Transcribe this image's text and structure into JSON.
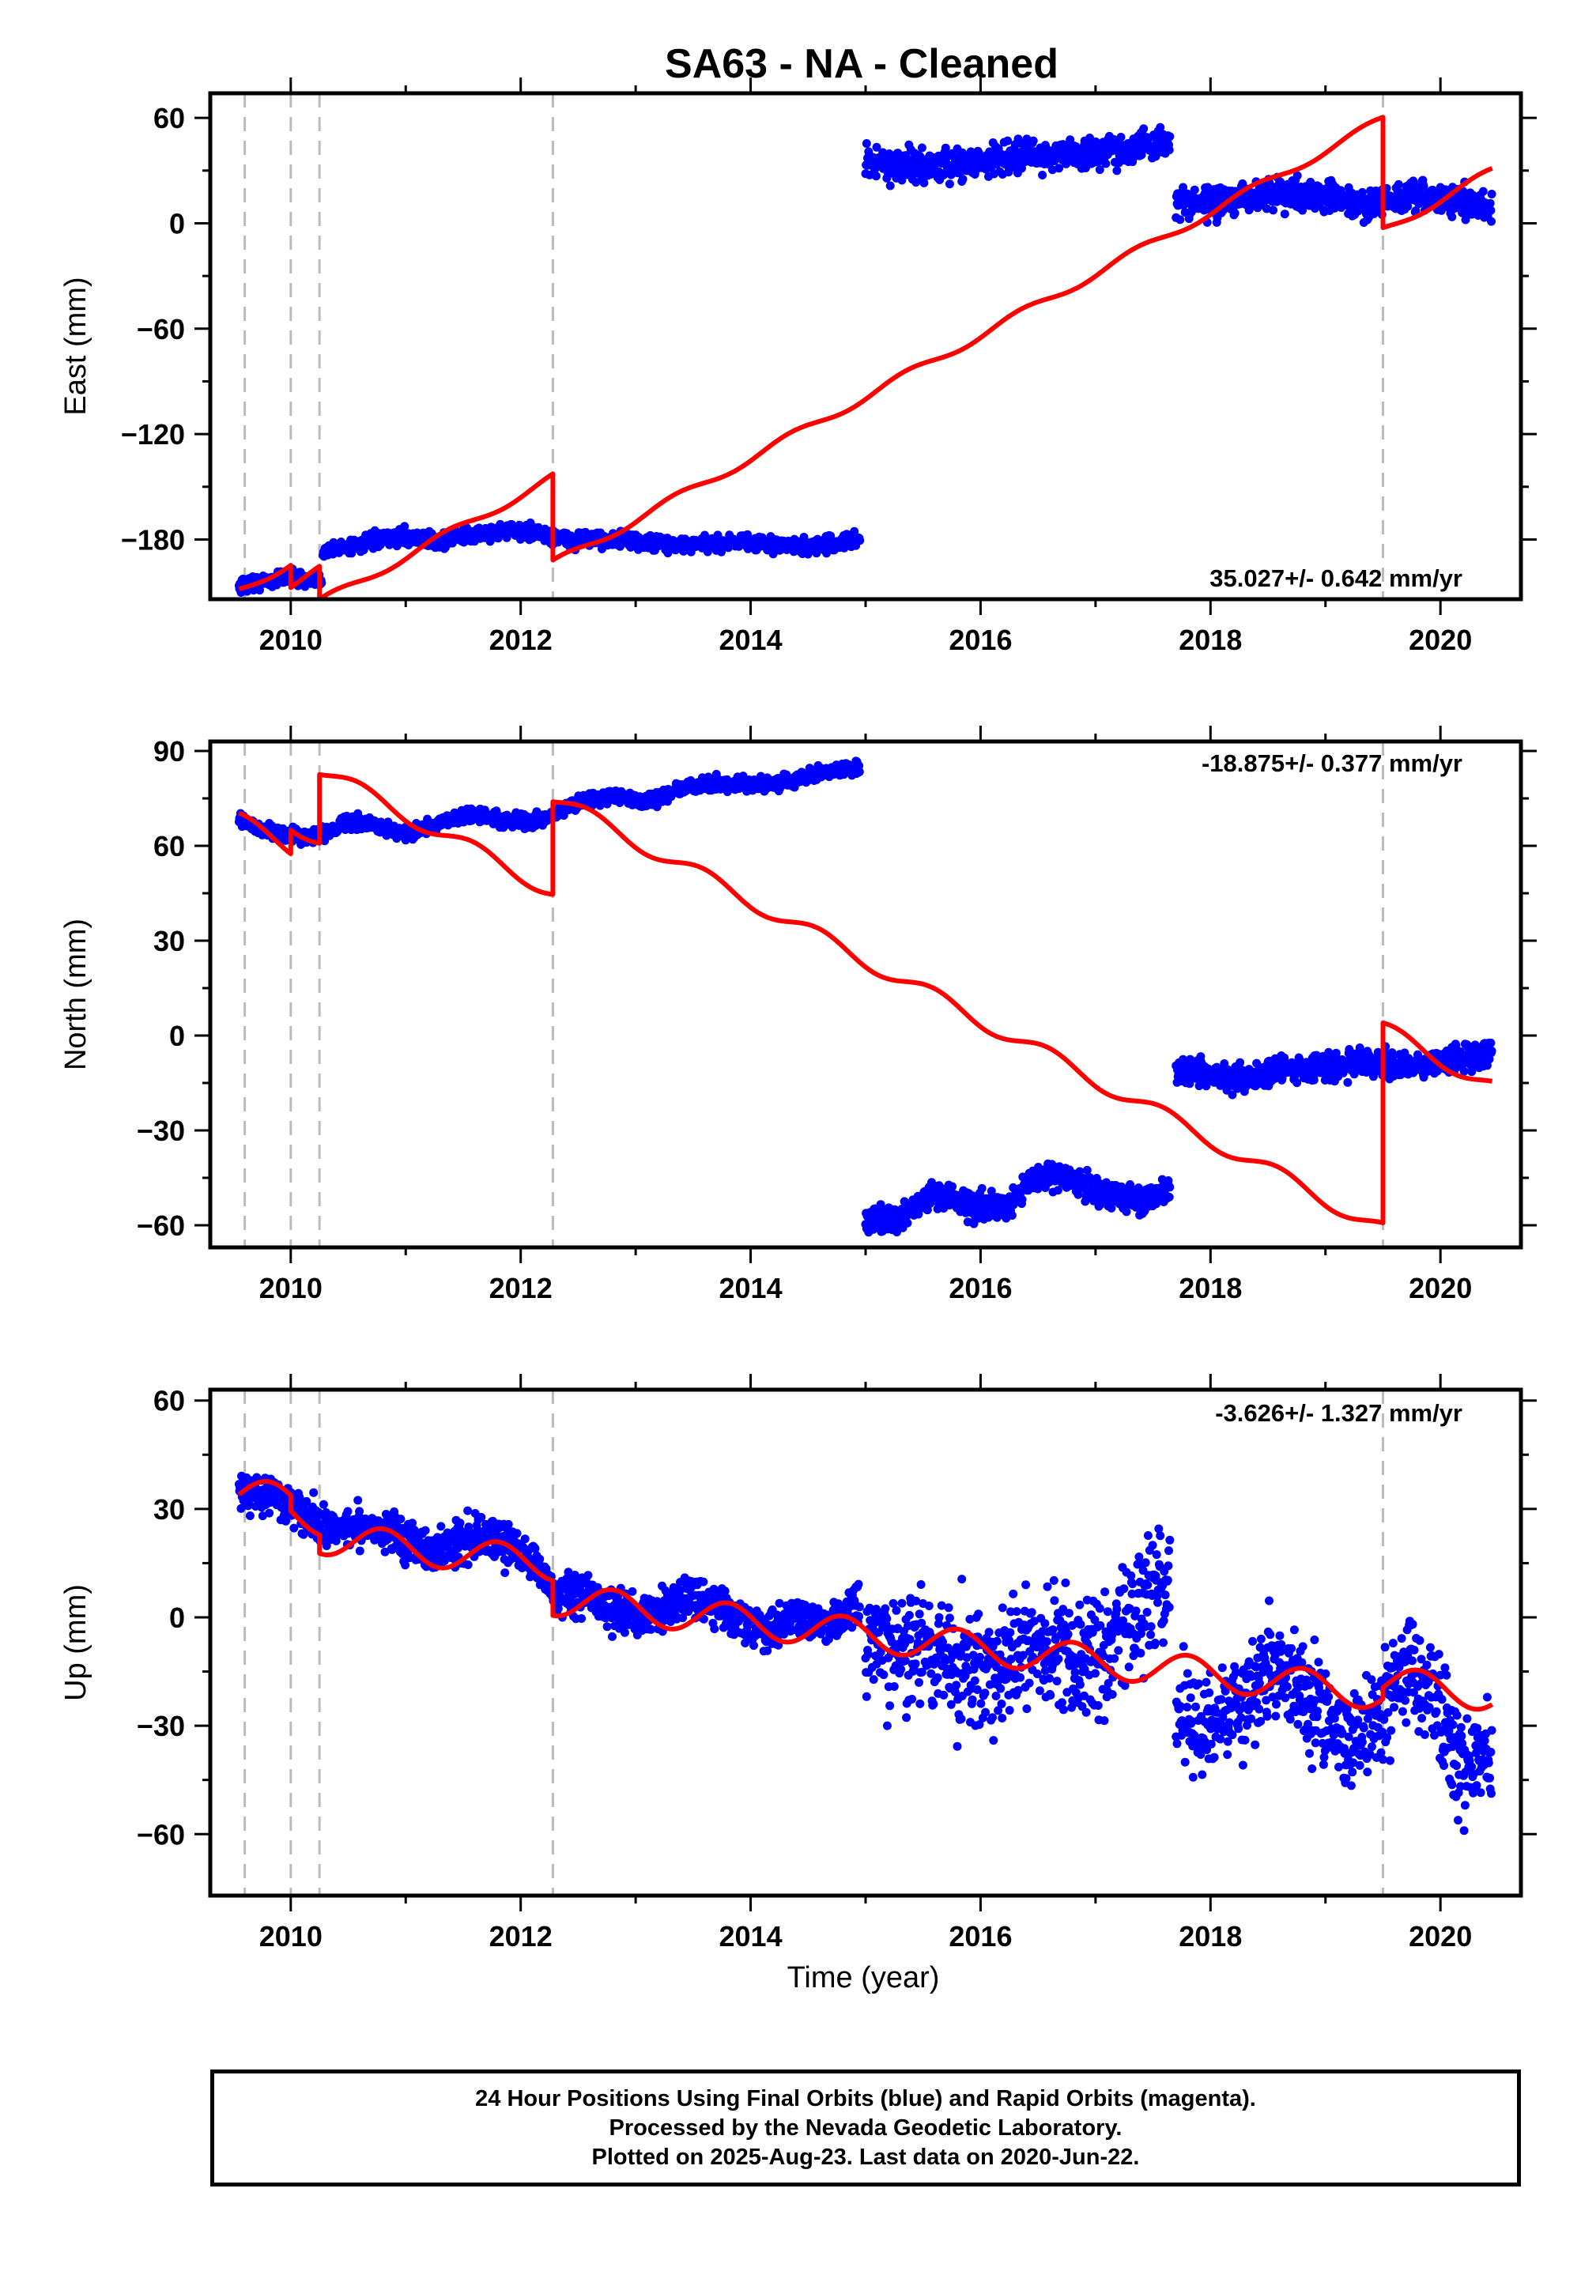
{
  "figure": {
    "title": "SA63  - NA - Cleaned",
    "xlabel": "Time (year)",
    "colors": {
      "data": "#0000ff",
      "model": "#ff0000",
      "breaks": "#bbbbbb",
      "axes": "#000000"
    }
  },
  "footer": {
    "line1": "24 Hour Positions Using Final Orbits (blue) and Rapid Orbits (magenta).",
    "line2": "Processed by the Nevada Geodetic Laboratory.",
    "line3": "Plotted on 2025-Aug-23. Last data on 2020-Jun-22."
  },
  "chart_data": [
    {
      "type": "scatter",
      "ylabel": "East (mm)",
      "rate_label": "35.027+/- 0.642 mm/yr",
      "xlim": [
        2009.3,
        2020.7
      ],
      "ylim": [
        -214,
        74
      ],
      "xticks": [
        2010,
        2012,
        2014,
        2016,
        2018,
        2020
      ],
      "xtick_labels": [
        "2010",
        "2012",
        "2014",
        "2016",
        "2018",
        "2020"
      ],
      "yticks": [
        60,
        0,
        -60,
        -120,
        -180
      ],
      "ytick_labels": [
        "60",
        "0",
        "−60",
        "−120",
        "−180"
      ],
      "breaks": [
        2009.6,
        2010.0,
        2010.25,
        2012.28,
        2019.5
      ],
      "data_segments": [
        {
          "x": [
            2009.55,
            2009.7,
            2009.85,
            2010.0,
            2010.1,
            2010.2,
            2010.27
          ],
          "y": [
            -206,
            -205,
            -203,
            -201,
            -203,
            -204,
            -203
          ],
          "noise": 3
        },
        {
          "x": [
            2010.28,
            2010.5,
            2010.8,
            2011.0,
            2011.3,
            2011.6,
            2011.9,
            2012.1,
            2012.4,
            2012.8,
            2013.0,
            2013.3,
            2013.6,
            2013.9,
            2014.2,
            2014.5,
            2014.8,
            2014.95
          ],
          "y": [
            -186,
            -184,
            -180,
            -178,
            -181,
            -177,
            -175,
            -176,
            -180,
            -180,
            -181,
            -183,
            -183,
            -181,
            -183,
            -184,
            -182,
            -180
          ],
          "noise": 3
        },
        {
          "x": [
            2015.0,
            2015.3,
            2015.6,
            2016.0,
            2016.3,
            2016.6,
            2017.0,
            2017.3,
            2017.65
          ],
          "y": [
            36,
            33,
            32,
            36,
            38,
            39,
            40,
            43,
            47
          ],
          "noise": 6
        },
        {
          "x": [
            2017.7,
            2018.0,
            2018.3,
            2018.6,
            2019.0,
            2019.3,
            2019.6,
            2019.9,
            2020.2,
            2020.45
          ],
          "y": [
            12,
            11,
            14,
            18,
            15,
            10,
            13,
            15,
            12,
            10
          ],
          "noise": 6
        }
      ],
      "model": {
        "segments": [
          [
            2009.55,
            2010.0
          ],
          [
            2010.0,
            2010.25
          ],
          [
            2010.25,
            2012.28
          ],
          [
            2012.28,
            2019.5
          ],
          [
            2019.5,
            2020.45
          ]
        ],
        "anchor": [
          [
            2009.55,
            -209
          ],
          [
            2010.0,
            -206
          ],
          [
            2010.25,
            -216
          ],
          [
            2012.28,
            -194
          ],
          [
            2019.5,
            -4
          ]
        ],
        "rate": 35.027,
        "amplitude": 2.5,
        "phase": 0.1
      }
    },
    {
      "type": "scatter",
      "ylabel": "North (mm)",
      "rate_label": "-18.875+/- 0.377 mm/yr",
      "xlim": [
        2009.3,
        2020.7
      ],
      "ylim": [
        -67,
        93
      ],
      "xticks": [
        2010,
        2012,
        2014,
        2016,
        2018,
        2020
      ],
      "xtick_labels": [
        "2010",
        "2012",
        "2014",
        "2016",
        "2018",
        "2020"
      ],
      "yticks": [
        90,
        60,
        30,
        0,
        -30,
        -60
      ],
      "ytick_labels": [
        "90",
        "60",
        "30",
        "0",
        "−30",
        "−60"
      ],
      "breaks": [
        2009.6,
        2010.0,
        2010.25,
        2012.28,
        2019.5
      ],
      "data_segments": [
        {
          "x": [
            2009.55,
            2009.7,
            2009.9,
            2010.1,
            2010.3,
            2010.5,
            2010.8,
            2011.0,
            2011.3,
            2011.6,
            2011.9,
            2012.2,
            2012.5,
            2012.8,
            2013.1,
            2013.4,
            2013.7,
            2014.0,
            2014.3,
            2014.6,
            2014.95
          ],
          "y": [
            68,
            66,
            64,
            63,
            64,
            68,
            66,
            64,
            67,
            70,
            68,
            68,
            74,
            76,
            74,
            78,
            80,
            79,
            80,
            83,
            85
          ],
          "noise": 1.5
        },
        {
          "x": [
            2015.0,
            2015.3,
            2015.6,
            2015.9,
            2016.2,
            2016.5,
            2016.8,
            2017.1,
            2017.4,
            2017.65
          ],
          "y": [
            -59,
            -57,
            -50,
            -54,
            -54,
            -44,
            -46,
            -50,
            -52,
            -49
          ],
          "noise": 3
        },
        {
          "x": [
            2017.7,
            2018.0,
            2018.3,
            2018.6,
            2019.0,
            2019.3,
            2019.6,
            2019.9,
            2020.2,
            2020.45
          ],
          "y": [
            -11,
            -13,
            -13,
            -11,
            -10,
            -8,
            -10,
            -9,
            -7,
            -5
          ],
          "noise": 3
        }
      ],
      "model": {
        "segments": [
          [
            2009.55,
            2010.0
          ],
          [
            2010.0,
            2010.25
          ],
          [
            2010.25,
            2012.28
          ],
          [
            2012.28,
            2019.5
          ],
          [
            2019.5,
            2020.45
          ]
        ],
        "anchor": [
          [
            2009.55,
            68
          ],
          [
            2010.0,
            67
          ],
          [
            2010.25,
            84
          ],
          [
            2012.28,
            75
          ],
          [
            2019.5,
            2
          ]
        ],
        "rate": -18.875,
        "amplitude": 2.5,
        "phase": 0.35
      }
    },
    {
      "type": "scatter",
      "ylabel": "Up (mm)",
      "rate_label": "-3.626+/- 1.327 mm/yr",
      "xlim": [
        2009.3,
        2020.7
      ],
      "ylim": [
        -77,
        63
      ],
      "xticks": [
        2010,
        2012,
        2014,
        2016,
        2018,
        2020
      ],
      "xtick_labels": [
        "2010",
        "2012",
        "2014",
        "2016",
        "2018",
        "2020"
      ],
      "yticks": [
        60,
        30,
        0,
        -30,
        -60
      ],
      "ytick_labels": [
        "60",
        "30",
        "0",
        "−30",
        "−60"
      ],
      "breaks": [
        2009.6,
        2010.0,
        2010.25,
        2012.28,
        2019.5
      ],
      "data_segments": [
        {
          "x": [
            2009.55,
            2009.8,
            2010.0,
            2010.3,
            2010.6,
            2010.9,
            2011.2,
            2011.5,
            2011.8,
            2012.1,
            2012.3,
            2012.6,
            2012.9,
            2013.2,
            2013.5,
            2013.8,
            2014.1,
            2014.4,
            2014.7,
            2014.95
          ],
          "y": [
            34,
            35,
            30,
            24,
            26,
            24,
            18,
            22,
            22,
            16,
            6,
            6,
            0,
            2,
            6,
            2,
            -4,
            0,
            -2,
            4
          ],
          "noise": 4
        },
        {
          "x": [
            2015.0,
            2015.4,
            2015.8,
            2016.2,
            2016.6,
            2017.0,
            2017.3,
            2017.65
          ],
          "y": [
            -10,
            -8,
            -14,
            -12,
            -8,
            -12,
            0,
            12
          ],
          "noise": 12
        },
        {
          "x": [
            2017.7,
            2018.0,
            2018.3,
            2018.6,
            2018.9,
            2019.2,
            2019.5,
            2019.7,
            2019.9,
            2020.2,
            2020.45
          ],
          "y": [
            -28,
            -30,
            -22,
            -12,
            -24,
            -34,
            -26,
            -12,
            -18,
            -42,
            -38
          ],
          "noise": 10
        }
      ],
      "model": {
        "segments": [
          [
            2009.55,
            2010.0
          ],
          [
            2010.0,
            2010.25
          ],
          [
            2010.25,
            2012.28
          ],
          [
            2012.28,
            2019.5
          ],
          [
            2019.5,
            2020.45
          ]
        ],
        "anchor": [
          [
            2009.55,
            34
          ],
          [
            2010.0,
            28
          ],
          [
            2010.25,
            22
          ],
          [
            2012.28,
            5
          ],
          [
            2019.5,
            -18
          ]
        ],
        "rate": -3.626,
        "amplitude": 4.5,
        "phase": 0.55
      }
    }
  ]
}
